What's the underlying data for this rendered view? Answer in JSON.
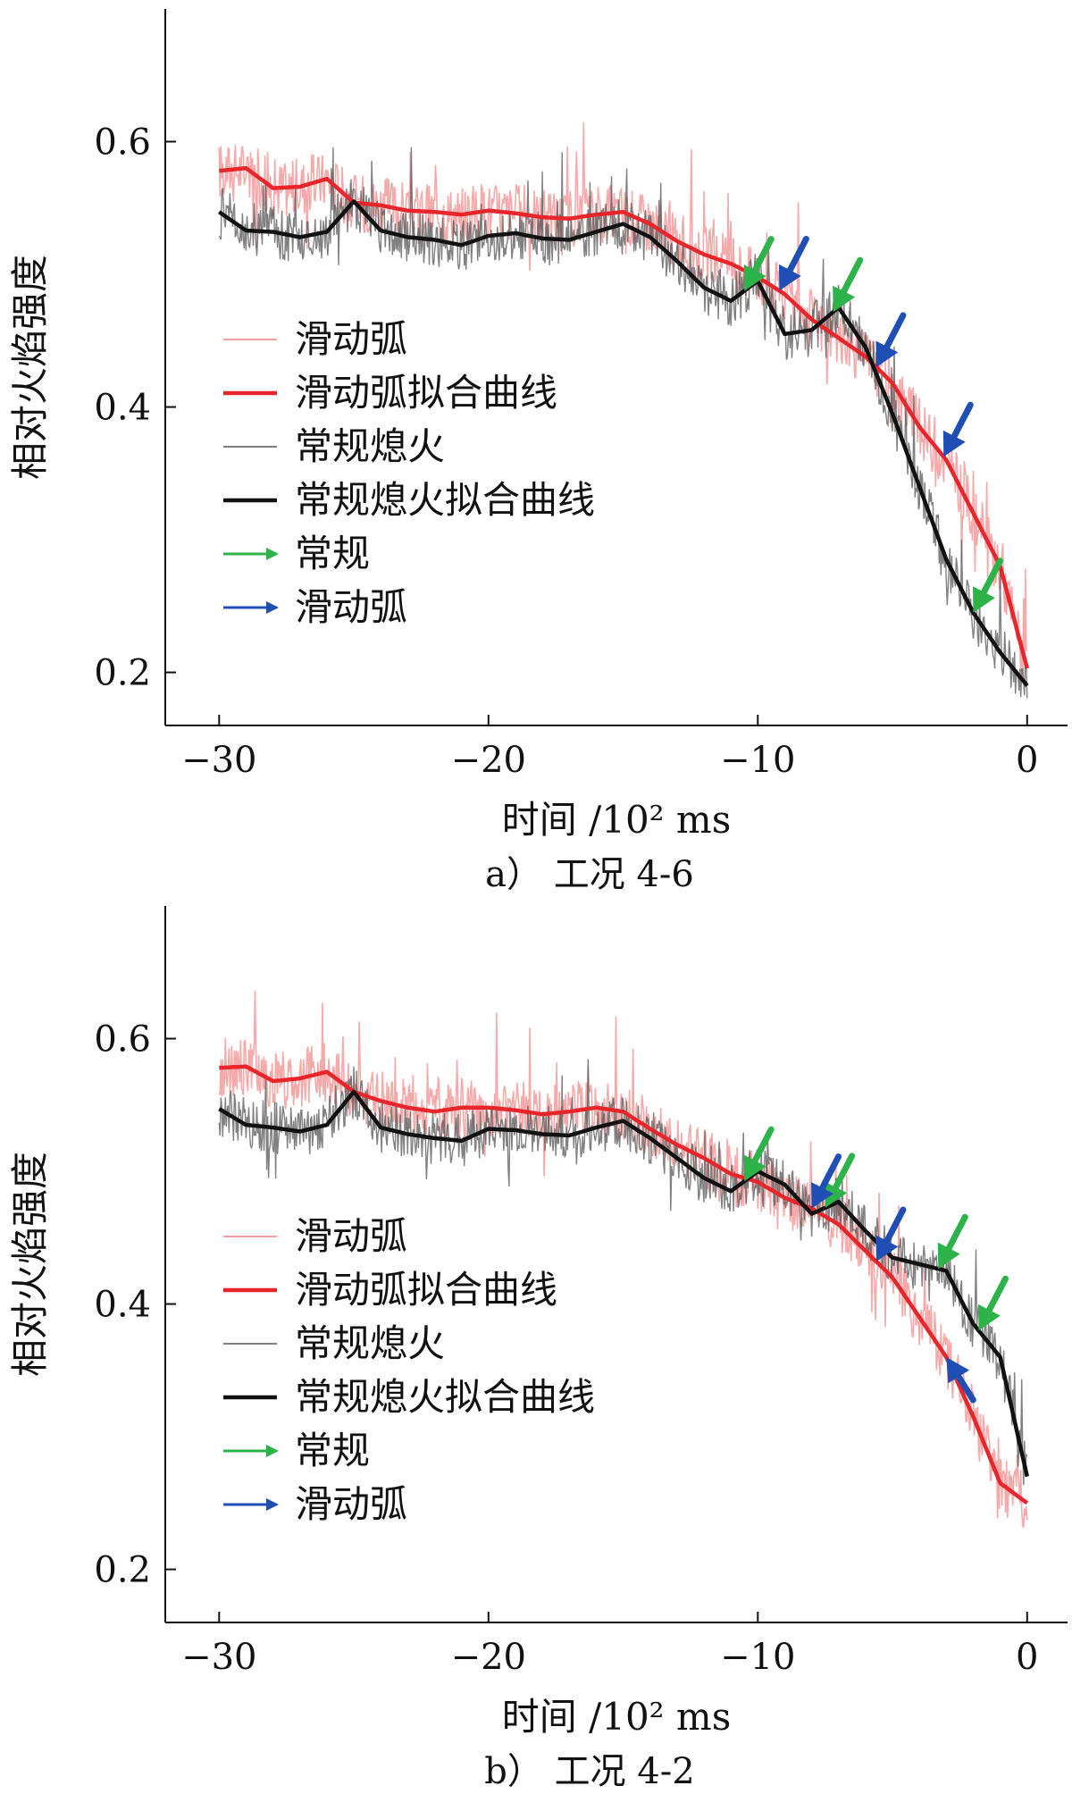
{
  "colors": {
    "raw_arc": "#f4a0a0",
    "fit_arc": "#e8252b",
    "raw_conv": "#555555",
    "fit_conv": "#111111",
    "arrow_green": "#2db34a",
    "arrow_blue": "#1f4fb5"
  },
  "chart_data": [
    {
      "type": "line",
      "caption": "a）  工况 4-6",
      "xlabel": "时间 /10² ms",
      "ylabel": "相对火焰强度",
      "xlim": [
        -32,
        1.5
      ],
      "ylim": [
        0.16,
        0.7
      ],
      "xticks": [
        -30,
        -20,
        -10,
        0
      ],
      "xtick_labels": [
        "−30",
        "−20",
        "−10",
        "0"
      ],
      "yticks": [
        0.2,
        0.4,
        0.6
      ],
      "ytick_labels": [
        "0.2",
        "0.4",
        "0.6"
      ],
      "legend": [
        "滑动弧",
        "滑动弧拟合曲线",
        "常规熄火",
        "常规熄火拟合曲线",
        "常规",
        "滑动弧"
      ],
      "legend_position": "center-left",
      "series": [
        {
          "name": "滑动弧拟合曲线",
          "role": "fit_arc",
          "x": [
            -30,
            -29,
            -28,
            -27,
            -26,
            -25,
            -24,
            -23,
            -22,
            -21,
            -20,
            -19,
            -18,
            -17,
            -16,
            -15,
            -14,
            -13,
            -12,
            -11,
            -10,
            -9,
            -8,
            -7,
            -6,
            -5,
            -4,
            -3,
            -2,
            -1,
            0
          ],
          "y": [
            0.578,
            0.58,
            0.565,
            0.566,
            0.572,
            0.554,
            0.552,
            0.548,
            0.547,
            0.545,
            0.548,
            0.546,
            0.543,
            0.542,
            0.545,
            0.547,
            0.538,
            0.525,
            0.515,
            0.508,
            0.498,
            0.485,
            0.466,
            0.452,
            0.438,
            0.418,
            0.385,
            0.36,
            0.32,
            0.28,
            0.203
          ]
        },
        {
          "name": "常规熄火拟合曲线",
          "role": "fit_conv",
          "x": [
            -30,
            -29,
            -28,
            -27,
            -26,
            -25,
            -24,
            -23,
            -22,
            -21,
            -20,
            -19,
            -18,
            -17,
            -16,
            -15,
            -14,
            -13,
            -12,
            -11,
            -10,
            -9,
            -8,
            -7,
            -6,
            -5,
            -4,
            -3,
            -2,
            -1,
            0
          ],
          "y": [
            0.547,
            0.533,
            0.532,
            0.528,
            0.532,
            0.555,
            0.533,
            0.528,
            0.526,
            0.522,
            0.529,
            0.531,
            0.527,
            0.526,
            0.532,
            0.538,
            0.528,
            0.51,
            0.49,
            0.48,
            0.495,
            0.455,
            0.458,
            0.475,
            0.445,
            0.395,
            0.34,
            0.285,
            0.245,
            0.215,
            0.19
          ]
        }
      ],
      "arrows_green_at": [
        -10.5,
        -7.2,
        -2.0
      ],
      "arrows_blue_at": [
        -9.2,
        -5.6,
        -3.1
      ]
    },
    {
      "type": "line",
      "caption": "b）  工况 4-2",
      "xlabel": "时间 /10² ms",
      "ylabel": "相对火焰强度",
      "xlim": [
        -32,
        1.5
      ],
      "ylim": [
        0.16,
        0.7
      ],
      "xticks": [
        -30,
        -20,
        -10,
        0
      ],
      "xtick_labels": [
        "−30",
        "−20",
        "−10",
        "0"
      ],
      "yticks": [
        0.2,
        0.4,
        0.6
      ],
      "ytick_labels": [
        "0.2",
        "0.4",
        "0.6"
      ],
      "legend": [
        "滑动弧",
        "滑动弧拟合曲线",
        "常规熄火",
        "常规熄火拟合曲线",
        "常规",
        "滑动弧"
      ],
      "legend_position": "center-left",
      "series": [
        {
          "name": "滑动弧拟合曲线",
          "role": "fit_arc",
          "x": [
            -30,
            -29,
            -28,
            -27,
            -26,
            -25,
            -24,
            -23,
            -22,
            -21,
            -20,
            -19,
            -18,
            -17,
            -16,
            -15,
            -14,
            -13,
            -12,
            -11,
            -10,
            -9,
            -8,
            -7,
            -6,
            -5,
            -4,
            -3,
            -2,
            -1,
            0
          ],
          "y": [
            0.578,
            0.579,
            0.568,
            0.57,
            0.575,
            0.56,
            0.553,
            0.548,
            0.545,
            0.548,
            0.548,
            0.546,
            0.543,
            0.545,
            0.548,
            0.545,
            0.532,
            0.52,
            0.51,
            0.498,
            0.492,
            0.48,
            0.472,
            0.46,
            0.44,
            0.42,
            0.39,
            0.36,
            0.315,
            0.265,
            0.25
          ]
        },
        {
          "name": "常规熄火拟合曲线",
          "role": "fit_conv",
          "x": [
            -30,
            -29,
            -28,
            -27,
            -26,
            -25,
            -24,
            -23,
            -22,
            -21,
            -20,
            -19,
            -18,
            -17,
            -16,
            -15,
            -14,
            -13,
            -12,
            -11,
            -10,
            -9,
            -8,
            -7,
            -6,
            -5,
            -4,
            -3,
            -2,
            -1,
            0
          ],
          "y": [
            0.547,
            0.535,
            0.533,
            0.53,
            0.535,
            0.56,
            0.533,
            0.528,
            0.525,
            0.523,
            0.532,
            0.531,
            0.528,
            0.527,
            0.533,
            0.538,
            0.525,
            0.51,
            0.495,
            0.485,
            0.5,
            0.49,
            0.468,
            0.477,
            0.455,
            0.435,
            0.43,
            0.425,
            0.385,
            0.36,
            0.27
          ]
        }
      ],
      "arrows_green_at": [
        -10.5,
        -7.5,
        -3.3,
        -1.8
      ],
      "arrows_blue_at": [
        -8.0,
        -5.6,
        -3.0
      ]
    }
  ]
}
